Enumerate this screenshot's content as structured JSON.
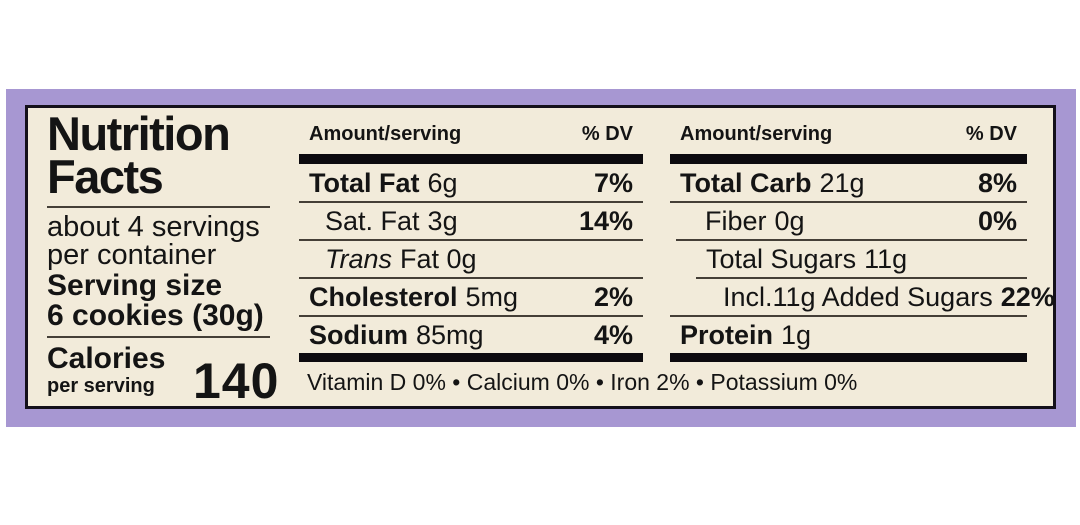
{
  "label": {
    "title": "Nutrition Facts",
    "servings_per_container": "about 4 servings per container",
    "serving_size_label": "Serving size",
    "serving_size_value": "6 cookies (30g)",
    "calories_label": "Calories",
    "calories_sub": "per serving",
    "calories_value": "140",
    "col_header_amount": "Amount/serving",
    "col_header_dv": "% DV",
    "mid_rows": [
      {
        "name": "Total Fat",
        "qty": "6g",
        "dv": "7%"
      },
      {
        "name": "Sat. Fat",
        "qty": "3g",
        "dv": "14%"
      },
      {
        "name": "Trans",
        "qty": "Fat 0g",
        "dv": ""
      },
      {
        "name": "Cholesterol",
        "qty": "5mg",
        "dv": "2%"
      },
      {
        "name": "Sodium",
        "qty": "85mg",
        "dv": "4%"
      }
    ],
    "right_rows": [
      {
        "name": "Total Carb",
        "qty": "21g",
        "dv": "8%"
      },
      {
        "name": "Fiber",
        "qty": "0g",
        "dv": "0%"
      },
      {
        "name": "Total Sugars",
        "qty": "11g",
        "dv": ""
      },
      {
        "name": "Incl.11g Added Sugars",
        "qty": "",
        "dv": "22%"
      },
      {
        "name": "Protein",
        "qty": "1g",
        "dv": ""
      }
    ],
    "micronutrients": "Vitamin D 0% • Calcium 0% • Iron 2% • Potassium 0%",
    "colors": {
      "frame_purple": "#a797d2",
      "panel_cream": "#f2ebda",
      "text_black": "#141414",
      "hairline": "#453f37"
    }
  }
}
